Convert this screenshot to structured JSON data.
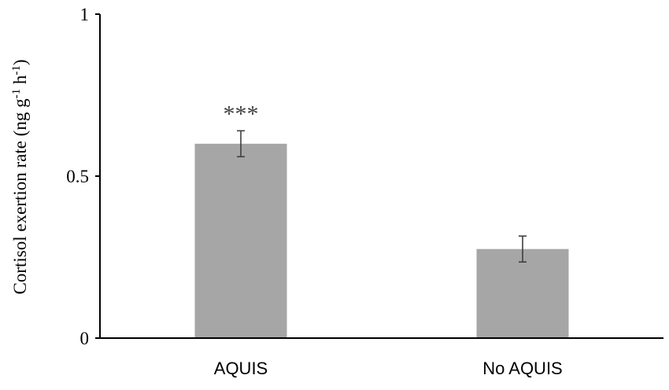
{
  "chart_data": {
    "type": "bar",
    "title": "",
    "xlabel": "",
    "ylabel": "Cortisol exertion rate (ng g",
    "ylabel_parts": {
      "base": "Cortisol exertion rate (ng g",
      "sup1": "-1",
      "mid": " h",
      "sup2": "-1",
      "end": ")"
    },
    "categories": [
      "AQUIS",
      "No AQUIS"
    ],
    "values": [
      0.6,
      0.275
    ],
    "error": [
      0.04,
      0.04
    ],
    "annotations": [
      "***",
      ""
    ],
    "ylim": [
      0,
      1
    ],
    "yticks": [
      0,
      0.5,
      1
    ],
    "ytick_labels": [
      "0",
      "0.5",
      "1"
    ],
    "grid": false,
    "legend": "none",
    "bar_color": "#a6a6a6",
    "axis_color": "#000000",
    "errorbar_color": "#404040"
  }
}
